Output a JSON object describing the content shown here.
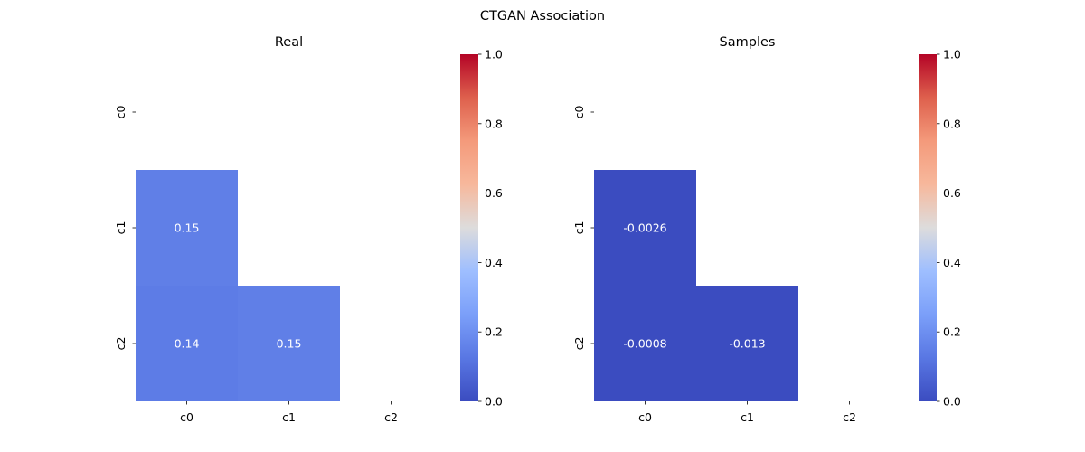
{
  "chart_data": {
    "type": "heatmap",
    "title": "CTGAN Association",
    "colormap": "coolwarm",
    "colorbar_range": [
      0,
      1
    ],
    "colorbar_ticks": [
      "0.0",
      "0.2",
      "0.4",
      "0.6",
      "0.8",
      "1.0"
    ],
    "colorbar_tick_values": [
      0,
      0.2,
      0.4,
      0.6,
      0.8,
      1.0
    ],
    "panels": [
      {
        "title": "Real",
        "rows": [
          "c0",
          "c1",
          "c2"
        ],
        "columns": [
          "c0",
          "c1",
          "c2"
        ],
        "mask": "upper-triangle-including-diagonal",
        "cells": [
          {
            "row": 1,
            "col": 0,
            "value": 0.15,
            "label": "0.15"
          },
          {
            "row": 2,
            "col": 0,
            "value": 0.14,
            "label": "0.14"
          },
          {
            "row": 2,
            "col": 1,
            "value": 0.15,
            "label": "0.15"
          }
        ]
      },
      {
        "title": "Samples",
        "rows": [
          "c0",
          "c1",
          "c2"
        ],
        "columns": [
          "c0",
          "c1",
          "c2"
        ],
        "mask": "upper-triangle-including-diagonal",
        "cells": [
          {
            "row": 1,
            "col": 0,
            "value": -0.0026,
            "label": "-0.0026"
          },
          {
            "row": 2,
            "col": 0,
            "value": -0.0008,
            "label": "-0.0008"
          },
          {
            "row": 2,
            "col": 1,
            "value": -0.013,
            "label": "-0.013"
          }
        ]
      }
    ]
  }
}
